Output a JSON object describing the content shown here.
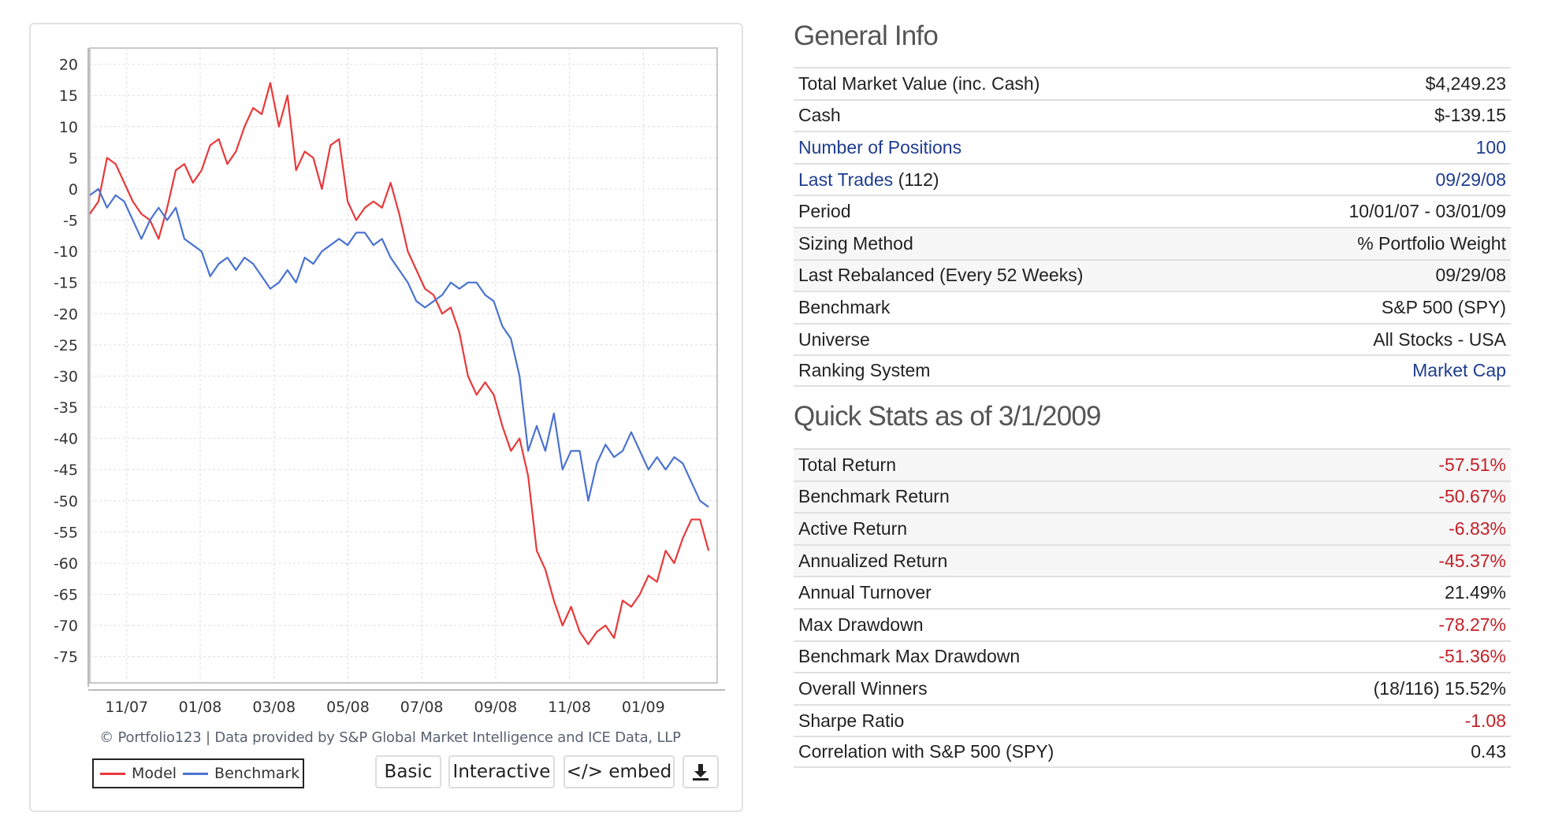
{
  "chart_data": {
    "type": "line",
    "title": "",
    "xlabel": "",
    "ylabel": "",
    "x_unit": "weeks since 10/01/07",
    "xlim": [
      0,
      73.9
    ],
    "ylim": [
      -79.2,
      22.6
    ],
    "yticks": [
      20,
      15,
      10,
      5,
      0,
      -5,
      -10,
      -15,
      -20,
      -25,
      -30,
      -35,
      -40,
      -45,
      -50,
      -55,
      -60,
      -65,
      -70,
      -75
    ],
    "xticks": [
      {
        "label": "11/07",
        "week": 4.34
      },
      {
        "label": "01/08",
        "week": 13.0
      },
      {
        "label": "03/08",
        "week": 21.7
      },
      {
        "label": "05/08",
        "week": 30.4
      },
      {
        "label": "07/08",
        "week": 39.1
      },
      {
        "label": "09/08",
        "week": 47.8
      },
      {
        "label": "11/08",
        "week": 56.5
      },
      {
        "label": "01/09",
        "week": 65.2
      }
    ],
    "grid": true,
    "legend_placement": "bottom-left",
    "series": [
      {
        "name": "Model",
        "color": "#e8393b",
        "values": [
          -4,
          -2,
          5,
          4,
          1,
          -2,
          -4,
          -5,
          -8,
          -3,
          3,
          4,
          1,
          3,
          7,
          8,
          4,
          6,
          10,
          13,
          12,
          17,
          10,
          15,
          3,
          6,
          5,
          0,
          7,
          8,
          -2,
          -5,
          -3,
          -2,
          -3,
          1,
          -4,
          -10,
          -13,
          -16,
          -17,
          -20,
          -19,
          -23,
          -30,
          -33,
          -31,
          -33,
          -38,
          -42,
          -40,
          -46,
          -58,
          -61,
          -66,
          -70,
          -67,
          -71,
          -73,
          -71,
          -70,
          -72,
          -66,
          -67,
          -65,
          -62,
          -63,
          -58,
          -60,
          -56,
          -53,
          -53,
          -58
        ]
      },
      {
        "name": "Benchmark",
        "color": "#4a72d0",
        "values": [
          -1,
          0,
          -3,
          -1,
          -2,
          -5,
          -8,
          -5,
          -3,
          -5,
          -3,
          -8,
          -9,
          -10,
          -14,
          -12,
          -11,
          -13,
          -11,
          -12,
          -14,
          -16,
          -15,
          -13,
          -15,
          -11,
          -12,
          -10,
          -9,
          -8,
          -9,
          -7,
          -7,
          -9,
          -8,
          -11,
          -13,
          -15,
          -18,
          -19,
          -18,
          -17,
          -15,
          -16,
          -15,
          -15,
          -17,
          -18,
          -22,
          -24,
          -30,
          -42,
          -38,
          -42,
          -36,
          -45,
          -42,
          -42,
          -50,
          -44,
          -41,
          -43,
          -42,
          -39,
          -42,
          -45,
          -43,
          -45,
          -43,
          -44,
          -47,
          -50,
          -51
        ]
      }
    ],
    "credit": "© Portfolio123 | Data provided by S&P Global Market Intelligence and ICE Data, LLP"
  },
  "chart_buttons": {
    "basic": "Basic",
    "interactive": "Interactive",
    "embed": "</> embed",
    "download_icon": "download-icon"
  },
  "general_info": {
    "title": "General Info",
    "rows": [
      {
        "label": "Total Market Value (inc. Cash)",
        "value": "$4,249.23"
      },
      {
        "label": "Cash",
        "value": "$-139.15"
      },
      {
        "label": "Number of Positions",
        "value": "100"
      },
      {
        "label": "Last Trades",
        "suffix": "(112)",
        "value": "09/29/08"
      },
      {
        "label": "Period",
        "value": "10/01/07 - 03/01/09"
      },
      {
        "label": "Sizing Method",
        "value": "% Portfolio Weight"
      },
      {
        "label": "Last Rebalanced (Every 52 Weeks)",
        "value": "09/29/08"
      },
      {
        "label": "Benchmark",
        "value": "S&P 500 (SPY)"
      },
      {
        "label": "Universe",
        "value": "All Stocks - USA"
      },
      {
        "label": "Ranking System",
        "value": "Market Cap"
      }
    ]
  },
  "quick_stats": {
    "title": "Quick Stats as of 3/1/2009",
    "rows": [
      {
        "label": "Total Return",
        "value": "-57.51%"
      },
      {
        "label": "Benchmark Return",
        "value": "-50.67%"
      },
      {
        "label": "Active Return",
        "value": "-6.83%"
      },
      {
        "label": "Annualized Return",
        "value": "-45.37%"
      },
      {
        "label": "Annual Turnover",
        "value": "21.49%"
      },
      {
        "label": "Max Drawdown",
        "value": "-78.27%"
      },
      {
        "label": "Benchmark Max Drawdown",
        "value": "-51.36%"
      },
      {
        "label": "Overall Winners",
        "value": "(18/116) 15.52%"
      },
      {
        "label": "Sharpe Ratio",
        "value": "-1.08"
      },
      {
        "label": "Correlation with S&P 500 (SPY)",
        "value": "0.43"
      }
    ]
  }
}
